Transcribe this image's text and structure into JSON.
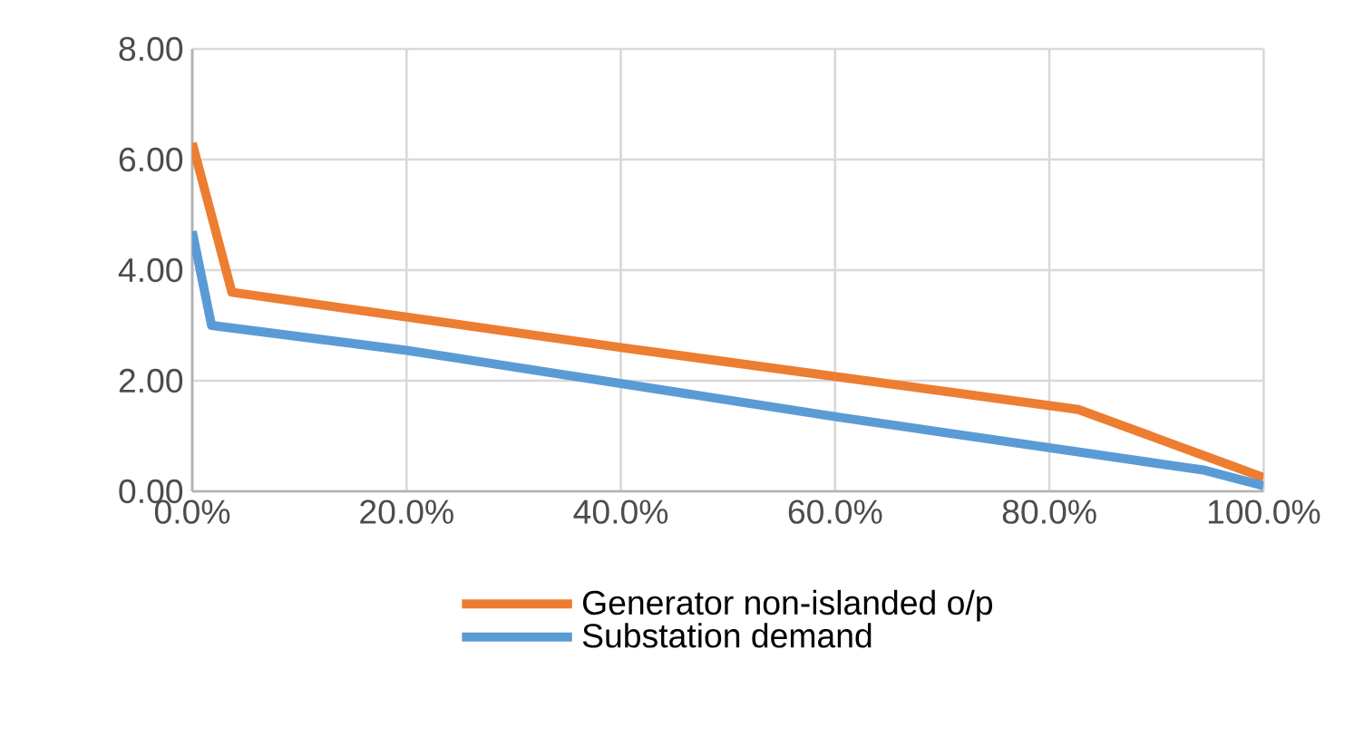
{
  "chart_data": {
    "type": "line",
    "xlim": [
      0,
      100
    ],
    "ylim": [
      0,
      8
    ],
    "xticks": [
      {
        "value": 0,
        "label": "0.0%"
      },
      {
        "value": 20,
        "label": "20.0%"
      },
      {
        "value": 40,
        "label": "40.0%"
      },
      {
        "value": 60,
        "label": "60.0%"
      },
      {
        "value": 80,
        "label": "80.0%"
      },
      {
        "value": 100,
        "label": "100.0%"
      }
    ],
    "yticks": [
      {
        "value": 0,
        "label": "0.00"
      },
      {
        "value": 2,
        "label": "2.00"
      },
      {
        "value": 4,
        "label": "4.00"
      },
      {
        "value": 6,
        "label": "6.00"
      },
      {
        "value": 8,
        "label": "8.00"
      }
    ],
    "grid": true,
    "legend": "bottom",
    "marker": "none",
    "line_style": "solid",
    "series": [
      {
        "name": "Generator non-islanded o/p",
        "color": "#ed7d31",
        "x": [
          0,
          3.7,
          40,
          82.7,
          100
        ],
        "values": [
          6.3,
          3.6,
          2.6,
          1.48,
          0.25
        ]
      },
      {
        "name": "Substation demand",
        "color": "#5b9bd5",
        "x": [
          0,
          1.8,
          20,
          60,
          94.5,
          100
        ],
        "values": [
          4.7,
          3.0,
          2.55,
          1.35,
          0.38,
          0.1
        ]
      }
    ]
  }
}
